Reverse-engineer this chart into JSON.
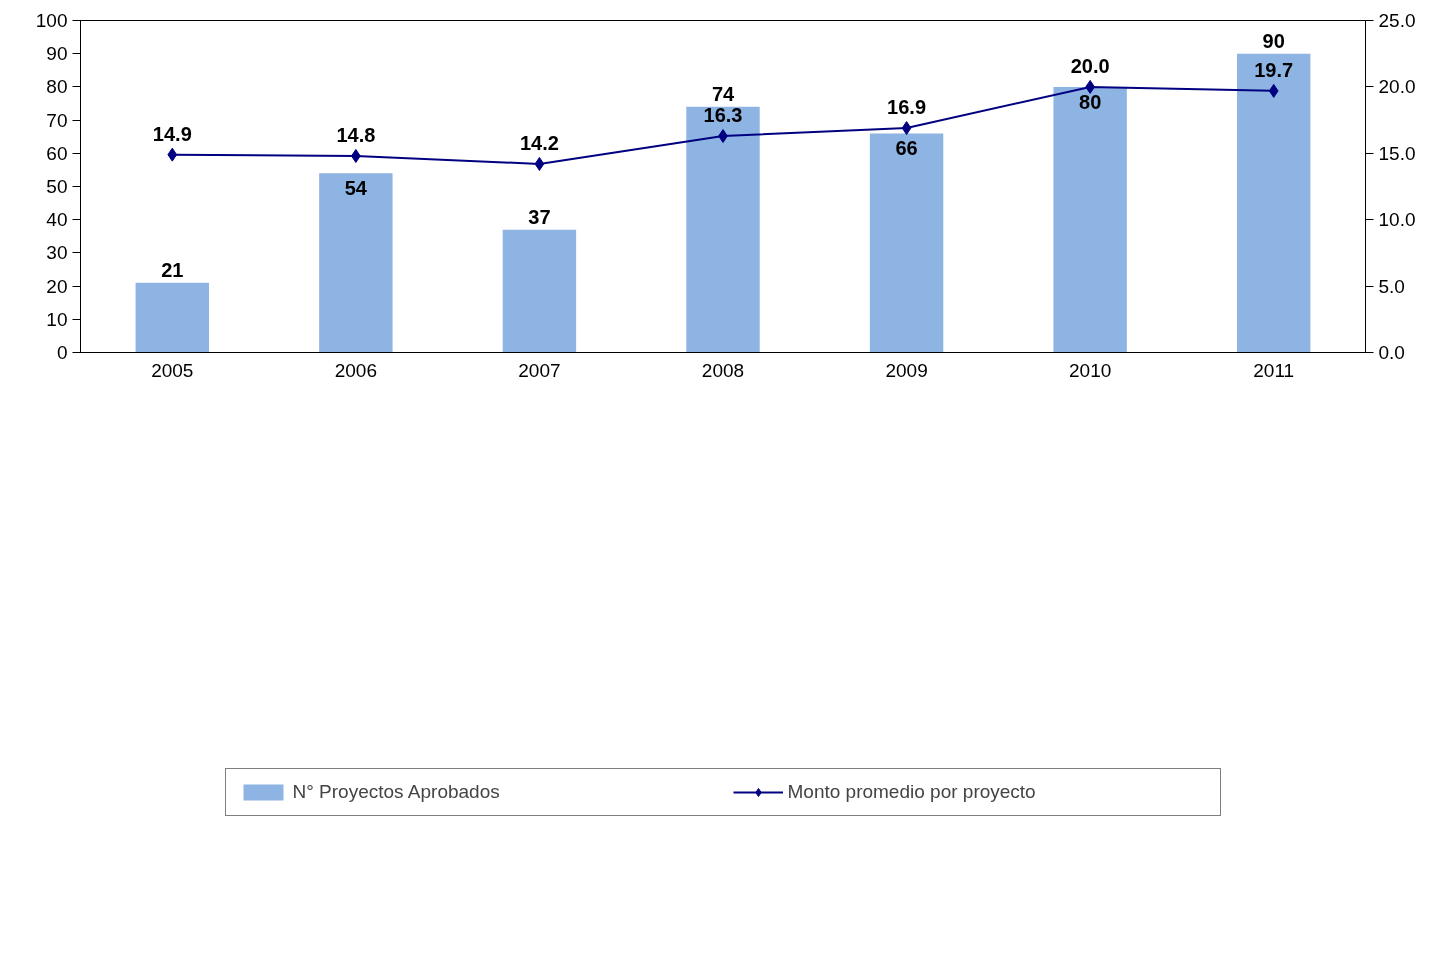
{
  "chart_data": {
    "type": "bar",
    "categories": [
      "2005",
      "2006",
      "2007",
      "2008",
      "2009",
      "2010",
      "2011"
    ],
    "series": [
      {
        "name": "N° Proyectos Aprobados",
        "color": "#8eb4e3",
        "values": [
          21,
          54,
          37,
          74,
          66,
          80,
          90
        ],
        "value_labels": [
          "21",
          "54",
          "37",
          "74",
          "66",
          "80",
          "90"
        ]
      },
      {
        "name": "Monto promedio por proyecto",
        "type": "line",
        "axis": "y2",
        "color": "#000080",
        "marker": "diamond",
        "values": [
          14.9,
          14.8,
          14.2,
          16.3,
          16.9,
          20.0,
          19.7
        ],
        "value_labels": [
          "14.9",
          "14.8",
          "14.2",
          "16.3",
          "16.9",
          "20.0",
          "19.7"
        ]
      }
    ],
    "ylim": [
      0,
      100
    ],
    "yticks": [
      0,
      10,
      20,
      30,
      40,
      50,
      60,
      70,
      80,
      90,
      100
    ],
    "y2lim": [
      0,
      25
    ],
    "y2ticks": [
      {
        "value": 0,
        "label": "0.0"
      },
      {
        "value": 5,
        "label": "5.0"
      },
      {
        "value": 10,
        "label": "10.0"
      },
      {
        "value": 15,
        "label": "15.0"
      },
      {
        "value": 20,
        "label": "20.0"
      },
      {
        "value": 25,
        "label": "25.0"
      }
    ],
    "grid": false,
    "legend": "bottom"
  }
}
